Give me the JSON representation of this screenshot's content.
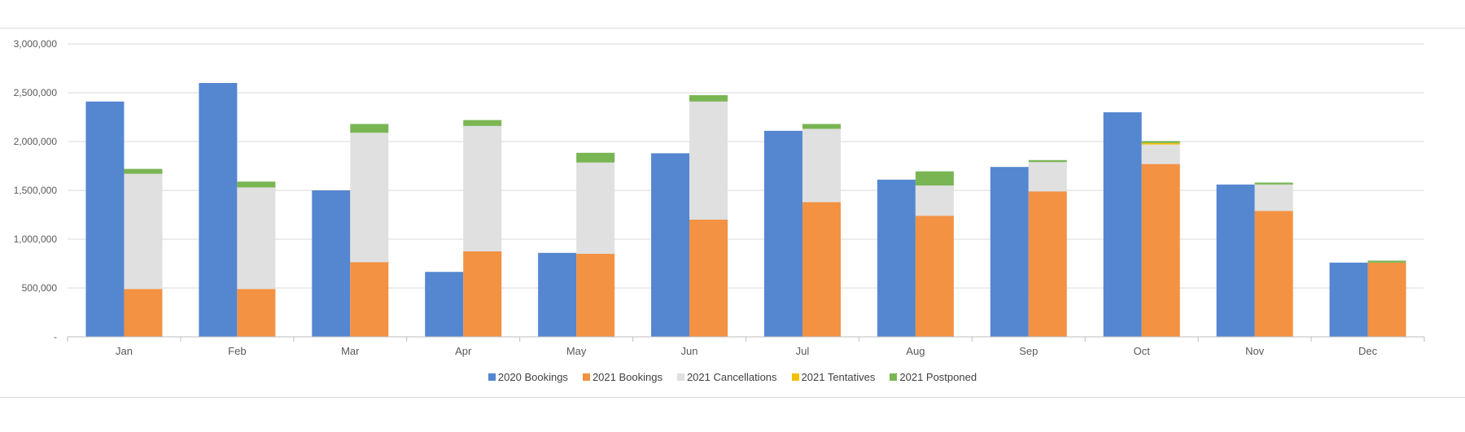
{
  "chart_data": {
    "type": "bar",
    "title": "",
    "xlabel": "",
    "ylabel": "",
    "ylim": [
      0,
      3000000
    ],
    "yticks": [
      0,
      500000,
      1000000,
      1500000,
      2000000,
      2500000,
      3000000
    ],
    "ytick_labels": [
      "-",
      "500,000",
      "1,000,000",
      "1,500,000",
      "2,000,000",
      "2,500,000",
      "3,000,000"
    ],
    "grid": true,
    "legend_position": "bottom",
    "categories": [
      "Jan",
      "Feb",
      "Mar",
      "Apr",
      "May",
      "Jun",
      "Jul",
      "Aug",
      "Sep",
      "Oct",
      "Nov",
      "Dec"
    ],
    "series": [
      {
        "name": "2020 Bookings",
        "color": "#5586d0",
        "stack": "2020",
        "values": [
          2410000,
          2600000,
          1500000,
          665000,
          860000,
          1880000,
          2110000,
          1610000,
          1740000,
          2300000,
          1560000,
          760000
        ]
      },
      {
        "name": "2021 Bookings",
        "color": "#f29242",
        "stack": "2021",
        "values": [
          490000,
          490000,
          765000,
          875000,
          850000,
          1200000,
          1380000,
          1240000,
          1490000,
          1770000,
          1290000,
          760000
        ]
      },
      {
        "name": "2021 Cancellations",
        "color": "#e0e0e0",
        "stack": "2021",
        "values": [
          1180000,
          1040000,
          1325000,
          1285000,
          935000,
          1210000,
          750000,
          310000,
          300000,
          200000,
          270000,
          0
        ]
      },
      {
        "name": "2021 Tentatives",
        "color": "#f5c000",
        "stack": "2021",
        "values": [
          0,
          0,
          0,
          0,
          0,
          0,
          0,
          0,
          0,
          15000,
          0,
          0
        ]
      },
      {
        "name": "2021 Postponed",
        "color": "#7ab554",
        "stack": "2021",
        "values": [
          50000,
          60000,
          90000,
          60000,
          100000,
          65000,
          50000,
          145000,
          20000,
          20000,
          20000,
          20000
        ]
      }
    ]
  }
}
